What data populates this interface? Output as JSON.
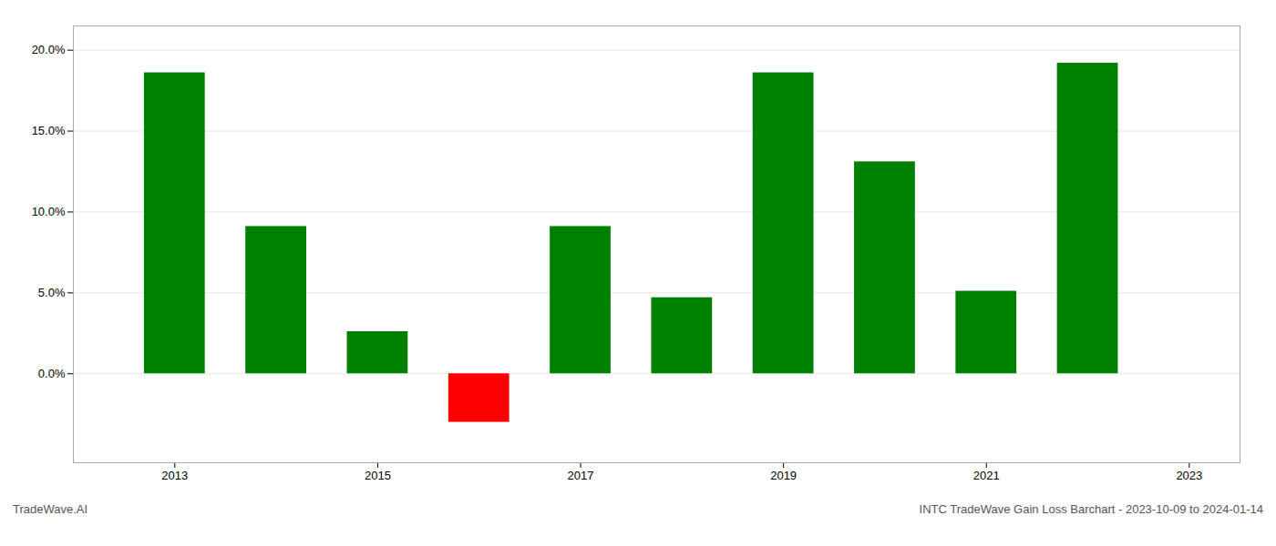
{
  "chart_data": {
    "type": "bar",
    "annotations": [
      "TradeWave.AI",
      "INTC TradeWave Gain Loss Barchart - 2023-10-09 to 2024-01-14"
    ],
    "x": [
      2013,
      2014,
      2015,
      2016,
      2017,
      2018,
      2019,
      2020,
      2021,
      2022
    ],
    "values": [
      0.186,
      0.091,
      0.026,
      -0.03,
      0.091,
      0.047,
      0.186,
      0.131,
      0.051,
      0.192
    ],
    "colors": [
      "#008000",
      "#008000",
      "#008000",
      "#ff0000",
      "#008000",
      "#008000",
      "#008000",
      "#008000",
      "#008000",
      "#008000"
    ],
    "xlim": [
      2012,
      2023.5
    ],
    "xticks": [
      2013,
      2015,
      2017,
      2019,
      2021,
      2023
    ],
    "ylim": [
      -0.055,
      0.215
    ],
    "yticks": [
      {
        "value": 0.0,
        "label": "0.0%"
      },
      {
        "value": 0.05,
        "label": "5.0%"
      },
      {
        "value": 0.1,
        "label": "10.0%"
      },
      {
        "value": 0.15,
        "label": "15.0%"
      },
      {
        "value": 0.2,
        "label": "20.0%"
      }
    ],
    "grid": true
  }
}
